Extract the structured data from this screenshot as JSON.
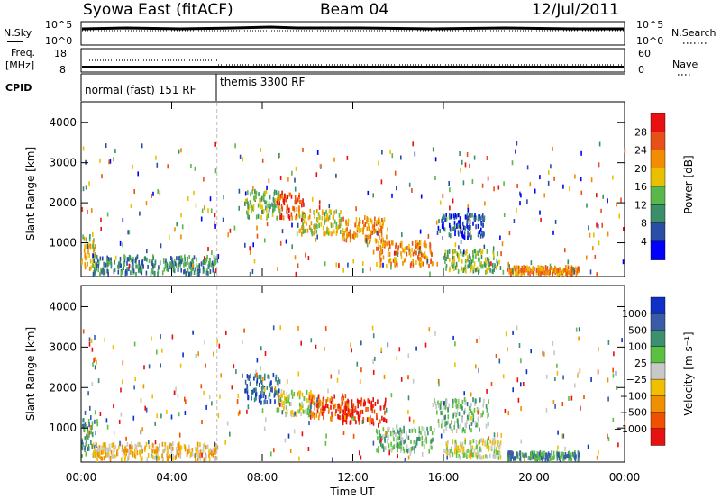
{
  "header": {
    "station": "Syowa East (fitACF)",
    "beam": "Beam 04",
    "date": "12/Jul/2011"
  },
  "noise_panel": {
    "left_label": "N.Sky",
    "right_label": "N.Search",
    "left_ticks": [
      "10^5",
      "10^0"
    ],
    "right_ticks": [
      "10^5",
      "10^0"
    ]
  },
  "freq_panel": {
    "left_label_1": "Freq.",
    "left_label_2": "[MHz]",
    "right_label": "Nave",
    "left_ticks": [
      "18",
      "8"
    ],
    "right_ticks": [
      "60",
      "0"
    ]
  },
  "cpid": {
    "label": "CPID",
    "modes": [
      {
        "name": "normal (fast) 151 RF",
        "start_hour": 0,
        "end_hour": 6
      },
      {
        "name": "themis 3300 RF",
        "start_hour": 6,
        "end_hour": 24
      }
    ]
  },
  "colors": {
    "power": [
      "#0000ff",
      "#2a4ea6",
      "#3a8f6a",
      "#5ab84a",
      "#e8c000",
      "#f28c00",
      "#e8501a",
      "#e81010"
    ],
    "velocity": [
      "#1030c8",
      "#3a5ca8",
      "#3a9070",
      "#5cc040",
      "#c8c8c8",
      "#f0c000",
      "#f09000",
      "#f05000",
      "#e81010"
    ]
  },
  "chart_data": [
    {
      "type": "heatmap",
      "name": "power",
      "ylabel": "Slant Range [km]",
      "xlabel": "",
      "x_ticks": [
        "00:00",
        "04:00",
        "08:00",
        "12:00",
        "16:00",
        "20:00",
        "00:00"
      ],
      "x_range_hours": [
        0,
        24
      ],
      "y_ticks": [
        1000,
        2000,
        3000,
        4000
      ],
      "y_range_km": [
        180,
        4500
      ],
      "colorbar_label": "Power [dB]",
      "colorbar_ticks": [
        "4",
        "8",
        "12",
        "16",
        "20",
        "24",
        "28"
      ],
      "clusters": [
        {
          "h0": 0.0,
          "h1": 0.6,
          "r0": 250,
          "r1": 1200,
          "lvl": 4
        },
        {
          "h0": 0.5,
          "h1": 6.0,
          "r0": 200,
          "r1": 650,
          "lvl": 2
        },
        {
          "h0": 7.2,
          "h1": 8.8,
          "r0": 1600,
          "r1": 2300,
          "lvl": 3
        },
        {
          "h0": 8.6,
          "h1": 9.8,
          "r0": 1600,
          "r1": 2200,
          "lvl": 6
        },
        {
          "h0": 9.5,
          "h1": 11.5,
          "r0": 1200,
          "r1": 1800,
          "lvl": 4
        },
        {
          "h0": 11.5,
          "h1": 13.5,
          "r0": 1000,
          "r1": 1600,
          "lvl": 5
        },
        {
          "h0": 13.0,
          "h1": 15.5,
          "r0": 400,
          "r1": 1000,
          "lvl": 5
        },
        {
          "h0": 15.7,
          "h1": 17.8,
          "r0": 1100,
          "r1": 1700,
          "lvl": 1
        },
        {
          "h0": 16.0,
          "h1": 18.5,
          "r0": 250,
          "r1": 800,
          "lvl": 3
        },
        {
          "h0": 18.8,
          "h1": 22.0,
          "r0": 200,
          "r1": 380,
          "lvl": 5
        }
      ]
    },
    {
      "type": "heatmap",
      "name": "velocity",
      "ylabel": "Slant Range [km]",
      "xlabel": "Time UT",
      "x_ticks": [
        "00:00",
        "04:00",
        "08:00",
        "12:00",
        "16:00",
        "20:00",
        "00:00"
      ],
      "x_range_hours": [
        0,
        24
      ],
      "y_ticks": [
        1000,
        2000,
        3000,
        4000
      ],
      "y_range_km": [
        180,
        4500
      ],
      "colorbar_label": "Velocity [m s⁻¹]",
      "colorbar_ticks": [
        "1000",
        "500",
        "100",
        "25",
        "−25",
        "−100",
        "−500",
        "−1000"
      ],
      "clusters": [
        {
          "h0": 0.0,
          "h1": 0.7,
          "r0": 250,
          "r1": 1200,
          "lvl": 2
        },
        {
          "h0": 0.5,
          "h1": 6.0,
          "r0": 200,
          "r1": 600,
          "lvl": 5
        },
        {
          "h0": 7.2,
          "h1": 8.8,
          "r0": 1600,
          "r1": 2300,
          "lvl": 1
        },
        {
          "h0": 8.6,
          "h1": 10.2,
          "r0": 1300,
          "r1": 1900,
          "lvl": 4
        },
        {
          "h0": 10.0,
          "h1": 11.8,
          "r0": 1200,
          "r1": 1800,
          "lvl": 7
        },
        {
          "h0": 11.5,
          "h1": 13.5,
          "r0": 1100,
          "r1": 1700,
          "lvl": 8
        },
        {
          "h0": 13.0,
          "h1": 15.5,
          "r0": 400,
          "r1": 1000,
          "lvl": 3
        },
        {
          "h0": 15.5,
          "h1": 18.0,
          "r0": 900,
          "r1": 1700,
          "lvl": 3
        },
        {
          "h0": 16.0,
          "h1": 18.5,
          "r0": 250,
          "r1": 700,
          "lvl": 4
        },
        {
          "h0": 18.8,
          "h1": 22.0,
          "r0": 200,
          "r1": 380,
          "lvl": 2
        }
      ]
    }
  ]
}
